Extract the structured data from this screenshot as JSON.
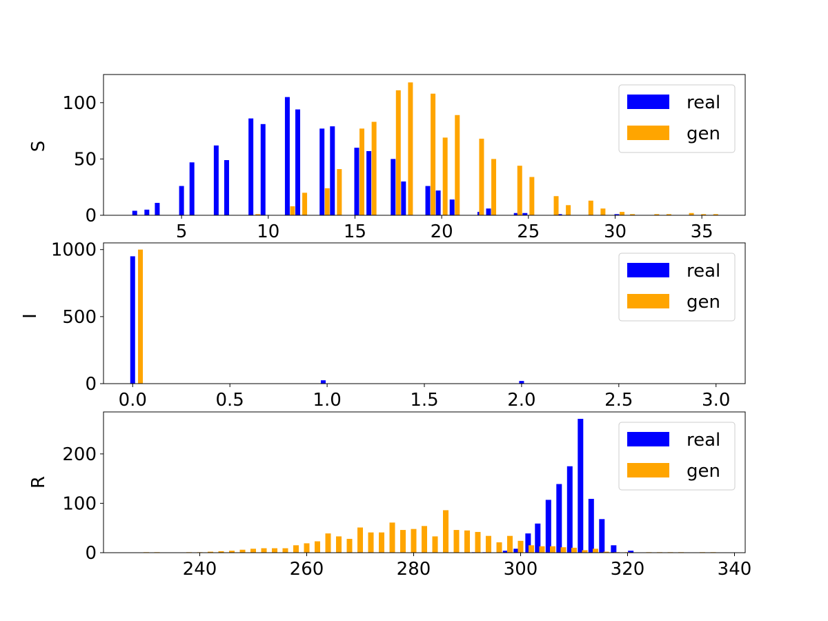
{
  "colors": {
    "real": "#0000ff",
    "gen": "#ffa500",
    "axis": "#000000",
    "legend_border": "#cccccc"
  },
  "chart_data": [
    {
      "type": "bar",
      "ylabel": "S",
      "xlim": [
        0.5,
        37.5
      ],
      "ylim": [
        0,
        125
      ],
      "xticks": [
        5,
        10,
        15,
        20,
        25,
        30,
        35
      ],
      "yticks": [
        0,
        50,
        100
      ],
      "legend": "top-right",
      "series": [
        {
          "name": "real",
          "x": [
            2.3,
            3.0,
            3.6,
            5.0,
            5.6,
            7.0,
            7.6,
            9.0,
            9.7,
            11.1,
            11.7,
            13.1,
            13.7,
            15.1,
            15.8,
            17.2,
            17.8,
            19.2,
            19.8,
            20.6,
            22.2,
            22.7,
            24.3,
            24.8,
            26.8,
            30.1
          ],
          "values": [
            4,
            5,
            11,
            26,
            47,
            62,
            49,
            86,
            81,
            105,
            94,
            77,
            79,
            60,
            57,
            50,
            30,
            26,
            22,
            14,
            3,
            6,
            2,
            2,
            1,
            1
          ]
        },
        {
          "name": "gen",
          "x": [
            9.4,
            11.4,
            12.1,
            13.4,
            14.1,
            15.4,
            16.1,
            17.5,
            18.2,
            19.5,
            20.2,
            20.9,
            22.3,
            23.0,
            24.5,
            25.2,
            26.6,
            27.3,
            28.6,
            29.3,
            30.4,
            31.0,
            32.4,
            33.1,
            34.4,
            35.1,
            35.8
          ],
          "values": [
            1,
            8,
            20,
            24,
            41,
            77,
            83,
            111,
            118,
            108,
            69,
            89,
            68,
            50,
            44,
            34,
            17,
            9,
            13,
            6,
            3,
            1,
            1,
            1,
            2,
            1,
            1
          ]
        }
      ]
    },
    {
      "type": "bar",
      "ylabel": "I",
      "xlim": [
        -0.15,
        3.15
      ],
      "ylim": [
        0,
        1050
      ],
      "xticks": [
        "0.0",
        "0.5",
        "1.0",
        "1.5",
        "2.0",
        "2.5",
        "3.0"
      ],
      "yticks": [
        0,
        500,
        1000
      ],
      "legend": "top-right",
      "series": [
        {
          "name": "real",
          "x": [
            0.0,
            0.98,
            2.0
          ],
          "values": [
            950,
            25,
            20
          ]
        },
        {
          "name": "gen",
          "x": [
            0.04
          ],
          "values": [
            1000
          ]
        }
      ]
    },
    {
      "type": "bar",
      "ylabel": "R",
      "xlim": [
        222,
        342
      ],
      "ylim": [
        0,
        285
      ],
      "xticks": [
        240,
        260,
        280,
        300,
        320,
        340
      ],
      "yticks": [
        0,
        100,
        200
      ],
      "legend": "top-right",
      "series": [
        {
          "name": "real",
          "x": [
            291.4,
            293.4,
            297.2,
            299.2,
            301.4,
            303.2,
            305.2,
            307.2,
            309.2,
            311.2,
            313.2,
            315.2,
            317.4,
            320.6
          ],
          "values": [
            1,
            1,
            4,
            8,
            39,
            59,
            107,
            139,
            175,
            271,
            109,
            68,
            15,
            4
          ]
        },
        {
          "name": "gen",
          "x": [
            230.0,
            232.0,
            238.0,
            240.0,
            242.0,
            244.0,
            246.0,
            248.0,
            250.0,
            252.0,
            254.0,
            256.0,
            258.0,
            260.0,
            262.0,
            264.0,
            266.0,
            268.0,
            270.0,
            272.0,
            274.0,
            276.0,
            278.0,
            280.0,
            282.0,
            284.0,
            286.0,
            288.0,
            290.0,
            292.0,
            294.0,
            296.0,
            298.0,
            300.0,
            302.0,
            304.0,
            306.0,
            308.0,
            310.0,
            312.0,
            314.0,
            316.0,
            318.0,
            320.0,
            324.0,
            326.0,
            328.0,
            330.0,
            334.0,
            336.0
          ],
          "values": [
            1,
            1,
            1,
            1,
            2,
            3,
            4,
            6,
            8,
            9,
            9,
            9,
            15,
            19,
            23,
            39,
            33,
            28,
            51,
            41,
            41,
            61,
            46,
            48,
            54,
            33,
            86,
            46,
            45,
            42,
            34,
            21,
            34,
            24,
            15,
            13,
            13,
            11,
            10,
            5,
            8,
            2,
            1,
            1,
            1,
            1,
            1,
            1,
            1,
            1
          ]
        }
      ]
    }
  ]
}
